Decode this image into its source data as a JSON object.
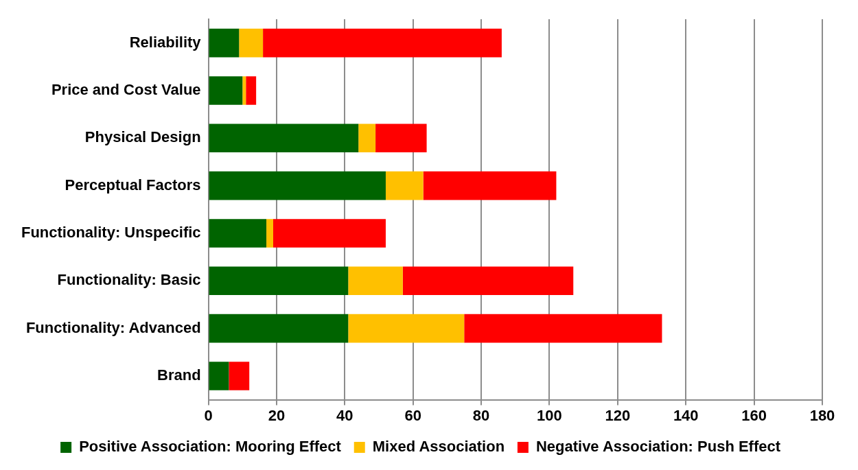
{
  "chart_data": {
    "type": "bar",
    "orientation": "horizontal",
    "stacked": true,
    "categories": [
      "Reliability",
      "Price and Cost Value",
      "Physical Design",
      "Perceptual Factors",
      "Functionality: Unspecific",
      "Functionality: Basic",
      "Functionality: Advanced",
      "Brand"
    ],
    "series": [
      {
        "name": "Positive Association: Mooring Effect",
        "color": "#006400",
        "values": [
          9,
          10,
          44,
          52,
          17,
          41,
          41,
          6
        ]
      },
      {
        "name": "Mixed Association",
        "color": "#ffc000",
        "values": [
          7,
          1,
          5,
          11,
          2,
          16,
          34,
          0
        ]
      },
      {
        "name": "Negative Association: Push Effect",
        "color": "#ff0000",
        "values": [
          70,
          3,
          15,
          39,
          33,
          50,
          58,
          6
        ]
      }
    ],
    "xlim": [
      0,
      180
    ],
    "xticks": [
      0,
      20,
      40,
      60,
      80,
      100,
      120,
      140,
      160,
      180
    ],
    "grid": "x",
    "legend": "bottom"
  }
}
